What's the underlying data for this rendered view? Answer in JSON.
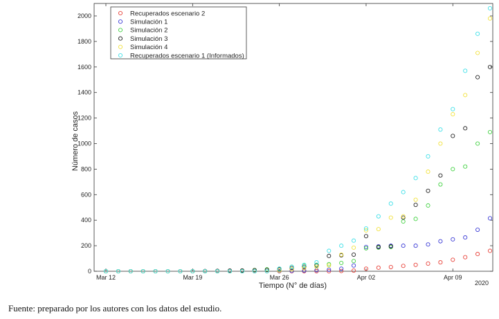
{
  "chart_data": {
    "type": "scatter",
    "xlabel": "Tiempo (N° de días)",
    "ylabel": "Número de casos",
    "ylim": [
      0,
      2000
    ],
    "xlim": [
      0,
      31
    ],
    "x_tick_labels": [
      {
        "x": 0,
        "label": "Mar 12"
      },
      {
        "x": 7,
        "label": "Mar 19"
      },
      {
        "x": 14,
        "label": "Mar 26"
      },
      {
        "x": 21,
        "label": "Apr 02"
      },
      {
        "x": 28,
        "label": "Apr 09"
      }
    ],
    "x_year_label": "2020",
    "y_ticks": [
      0,
      200,
      400,
      600,
      800,
      1000,
      1200,
      1400,
      1600,
      1800,
      2000
    ],
    "grid": false,
    "legend_position": "top-left",
    "x": [
      0,
      1,
      2,
      3,
      4,
      5,
      6,
      7,
      8,
      9,
      10,
      11,
      12,
      13,
      14,
      15,
      16,
      17,
      18,
      19,
      20,
      21,
      22,
      23,
      24,
      25,
      26,
      27,
      28,
      29,
      30,
      31
    ],
    "series": [
      {
        "name": "Recuperados escenario 2",
        "color": "#e8423a",
        "values": [
          0,
          0,
          0,
          0,
          0,
          0,
          0,
          0,
          0,
          0,
          0,
          0,
          0,
          0,
          0,
          0,
          0,
          0,
          0,
          2,
          5,
          20,
          28,
          33,
          42,
          50,
          60,
          70,
          90,
          110,
          135,
          160
        ]
      },
      {
        "name": "Simulación 1",
        "color": "#3b3bd6",
        "values": [
          0,
          0,
          0,
          0,
          0,
          0,
          0,
          0,
          0,
          0,
          0,
          0,
          0,
          0,
          2,
          3,
          5,
          8,
          12,
          20,
          45,
          190,
          195,
          200,
          200,
          200,
          210,
          235,
          250,
          265,
          325,
          415
        ]
      },
      {
        "name": "Simulación 2",
        "color": "#44d244",
        "values": [
          0,
          0,
          0,
          0,
          0,
          0,
          0,
          0,
          0,
          0,
          0,
          5,
          10,
          15,
          20,
          35,
          45,
          50,
          55,
          65,
          80,
          180,
          185,
          190,
          390,
          410,
          515,
          680,
          800,
          820,
          1000,
          1090
        ]
      },
      {
        "name": "Simulación 3",
        "color": "#222222",
        "values": [
          0,
          0,
          0,
          0,
          0,
          0,
          0,
          0,
          2,
          3,
          5,
          6,
          8,
          10,
          15,
          25,
          35,
          45,
          120,
          125,
          130,
          275,
          190,
          195,
          420,
          520,
          630,
          750,
          1060,
          1120,
          1520,
          1600
        ]
      },
      {
        "name": "Simulación 4",
        "color": "#f2e23c",
        "values": [
          0,
          0,
          0,
          0,
          0,
          0,
          0,
          0,
          0,
          0,
          0,
          0,
          0,
          0,
          5,
          15,
          25,
          35,
          45,
          130,
          185,
          320,
          330,
          420,
          430,
          560,
          780,
          1000,
          1230,
          1380,
          1710,
          1980
        ]
      },
      {
        "name": "Recuperados escenario 1 (Informados)",
        "color": "#3fe0e8",
        "values": [
          0,
          0,
          0,
          0,
          0,
          0,
          0,
          0,
          0,
          0,
          0,
          0,
          0,
          0,
          20,
          35,
          50,
          70,
          160,
          200,
          240,
          335,
          430,
          530,
          620,
          730,
          900,
          1110,
          1270,
          1570,
          1860,
          2060
        ]
      }
    ]
  },
  "caption": "Fuente: preparado por los autores con los datos del estudio."
}
